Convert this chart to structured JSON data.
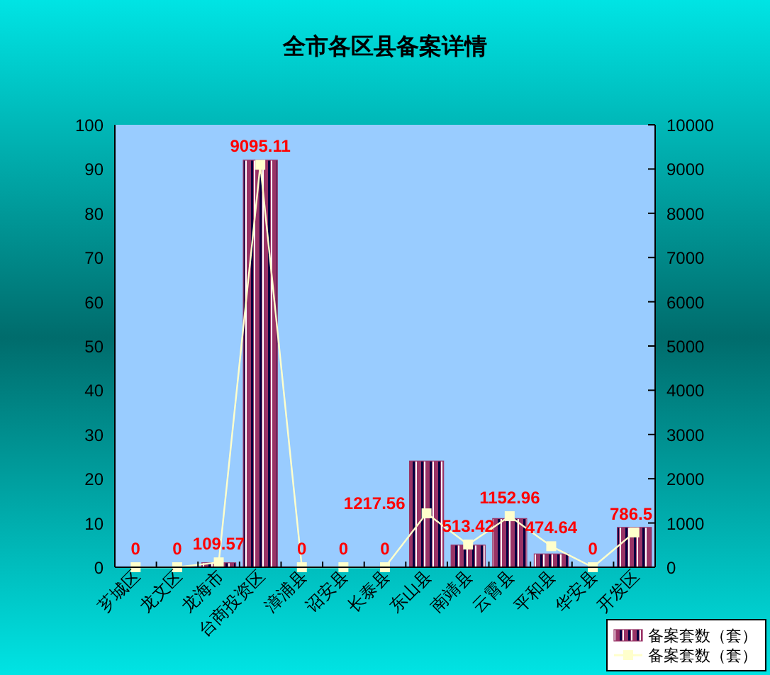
{
  "chart_data": {
    "type": "bar",
    "title": "全市各区县备案详情",
    "categories": [
      "芗城区",
      "龙文区",
      "龙海市",
      "台商投资区",
      "漳浦县",
      "诏安县",
      "长泰县",
      "东山县",
      "南靖县",
      "云霄县",
      "平和县",
      "华安县",
      "开发区"
    ],
    "series": [
      {
        "name": "备案套数（套）",
        "color": "#993366",
        "values": [
          0,
          0,
          1,
          92,
          0,
          0,
          0,
          24,
          5,
          11,
          3,
          0,
          9
        ]
      },
      {
        "name": "备案套数（套）",
        "type": "line",
        "axis": "y2",
        "color": "#ffffcc",
        "values": [
          0,
          0,
          109.57,
          9095.11,
          0,
          0,
          0,
          1217.56,
          513.42,
          1152.96,
          474.64,
          0,
          786.5
        ],
        "value_labels": [
          "0",
          "0",
          "109.57",
          "9095.11",
          "0",
          "0",
          "0",
          "1217.56",
          "513.42",
          "1152.96",
          "474.64",
          "0",
          "786.5"
        ]
      }
    ],
    "ylim": [
      0,
      100
    ],
    "yticks": [
      0,
      10,
      20,
      30,
      40,
      50,
      60,
      70,
      80,
      90,
      100
    ],
    "y2lim": [
      0,
      10000
    ],
    "y2ticks": [
      0,
      1000,
      2000,
      3000,
      4000,
      5000,
      6000,
      7000,
      8000,
      9000,
      10000
    ],
    "marker": "square",
    "legend": "bottom right"
  }
}
